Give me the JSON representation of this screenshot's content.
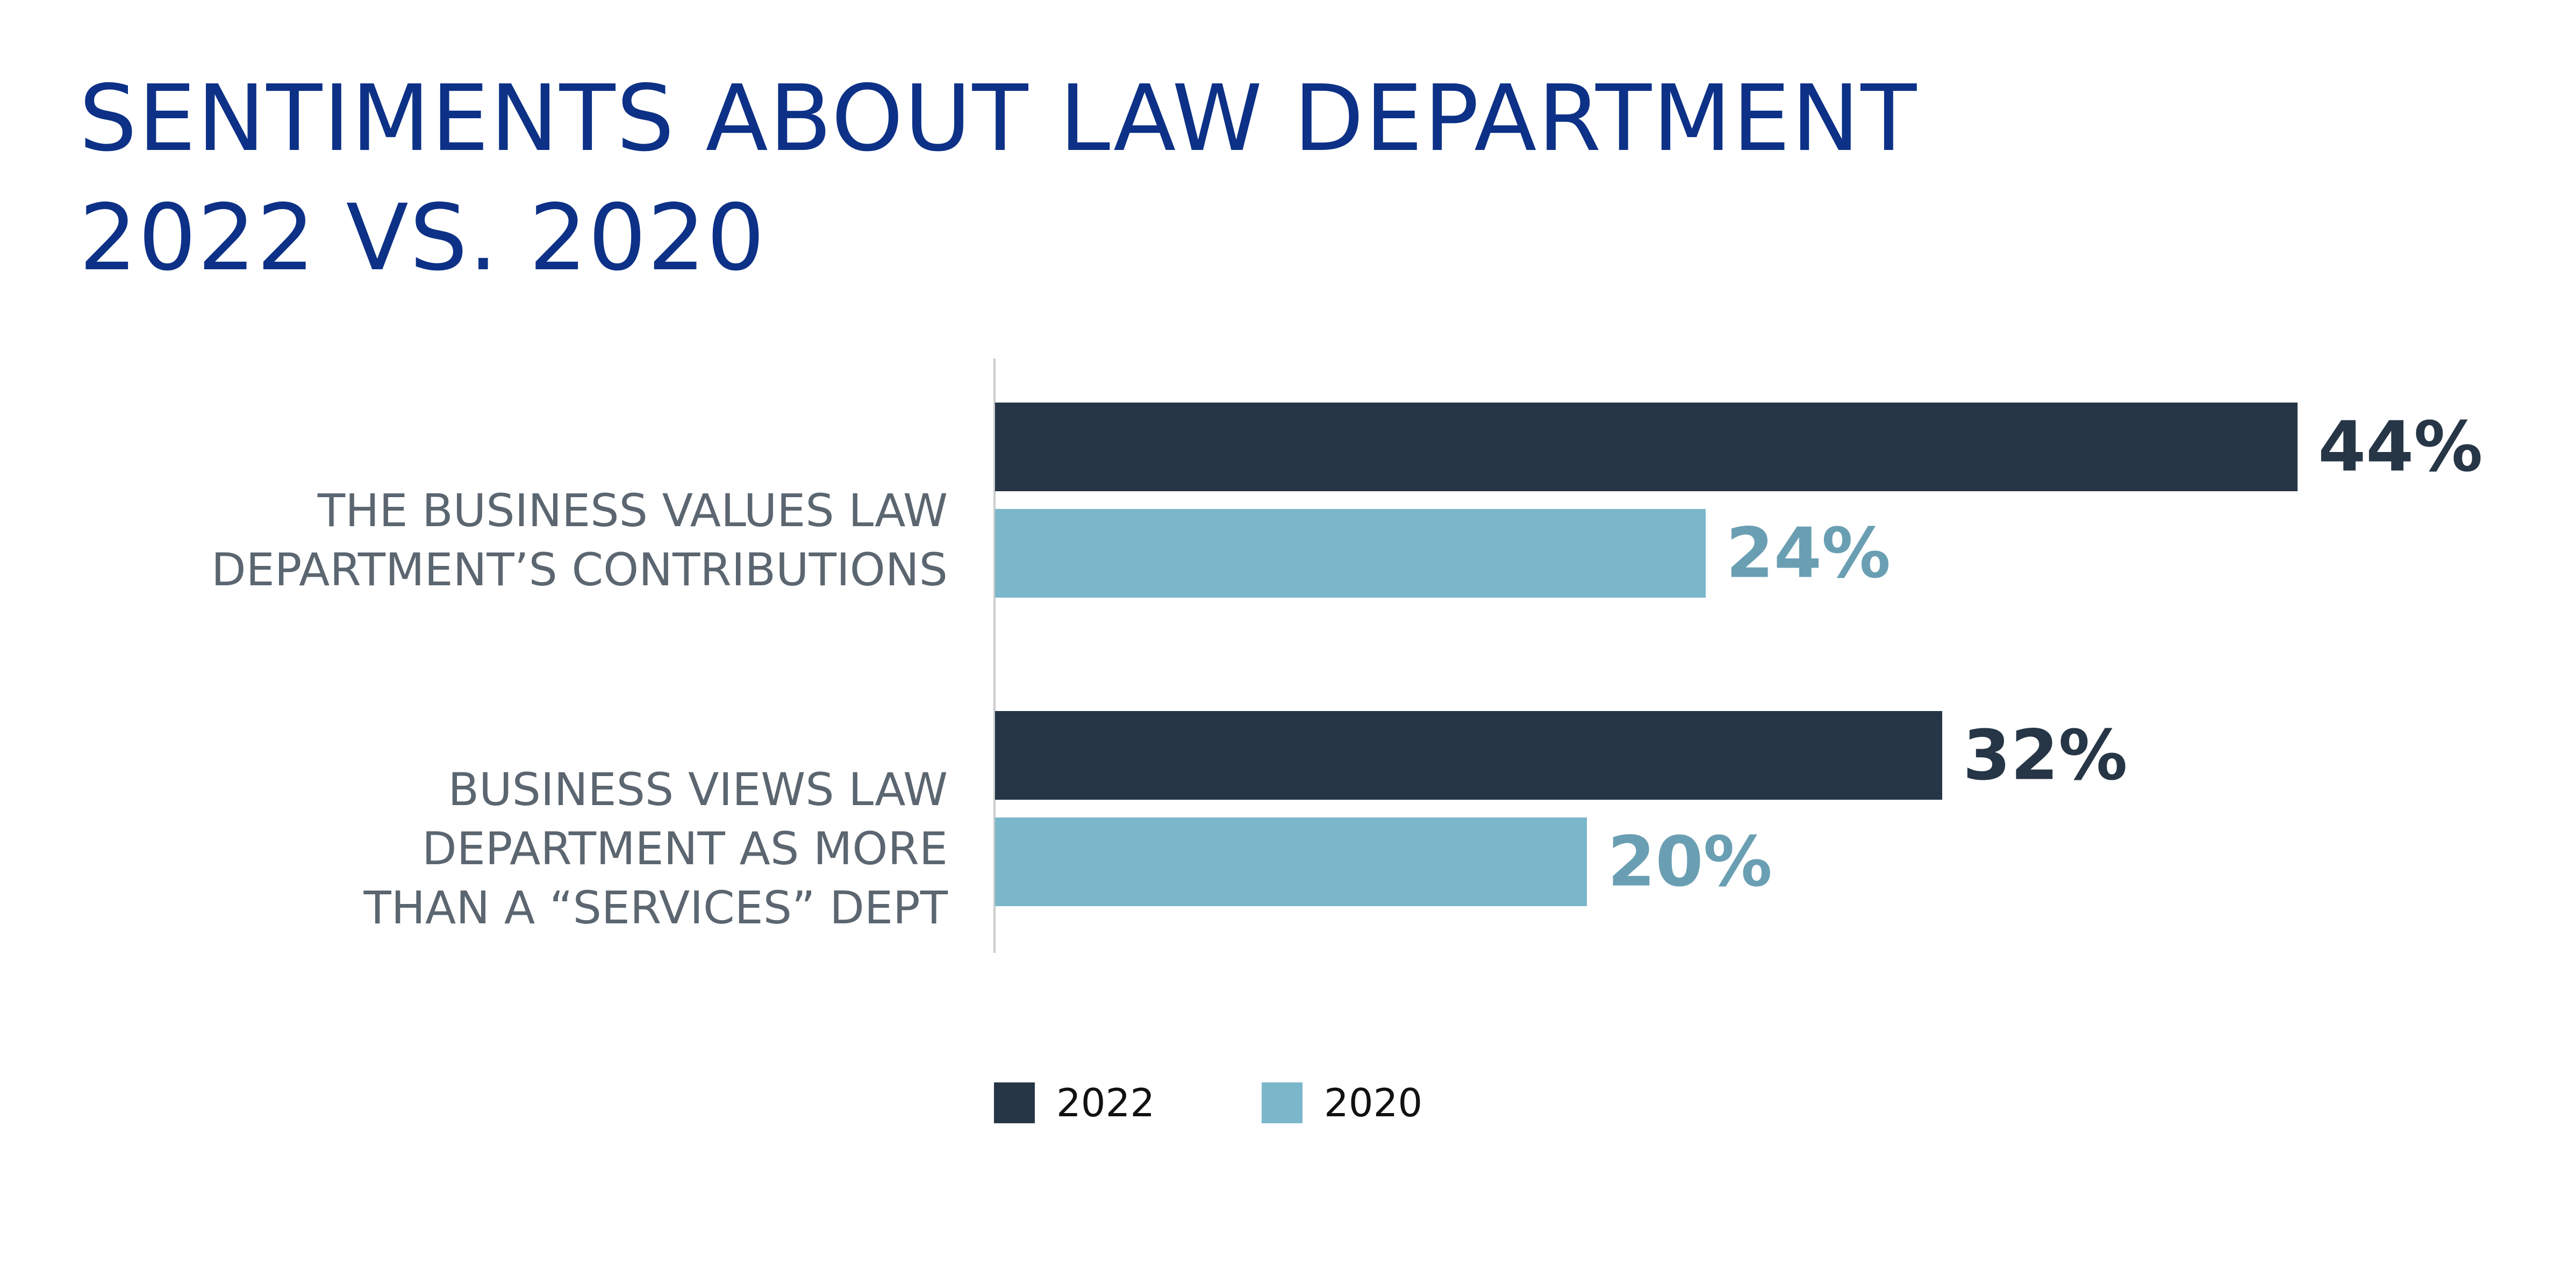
{
  "chart_data": {
    "type": "barh",
    "title": "SENTIMENTS ABOUT LAW DEPARTMENT\n2022 VS. 2020",
    "categories": [
      "THE BUSINESS VALUES LAW\nDEPARTMENT’S CONTRIBUTIONS",
      "BUSINESS VIEWS LAW\nDEPARTMENT AS MORE\nTHAN A “SERVICES” DEPT"
    ],
    "series": [
      {
        "name": "2022",
        "color": "#263646",
        "label_color": "#263646",
        "values": [
          44,
          32
        ],
        "value_labels": [
          "44%",
          "32%"
        ]
      },
      {
        "name": "2020",
        "color": "#7bb7cb",
        "label_color": "#6a9fb3",
        "values": [
          24,
          20
        ],
        "value_labels": [
          "24%",
          "20%"
        ]
      }
    ],
    "legend": "bottom"
  }
}
